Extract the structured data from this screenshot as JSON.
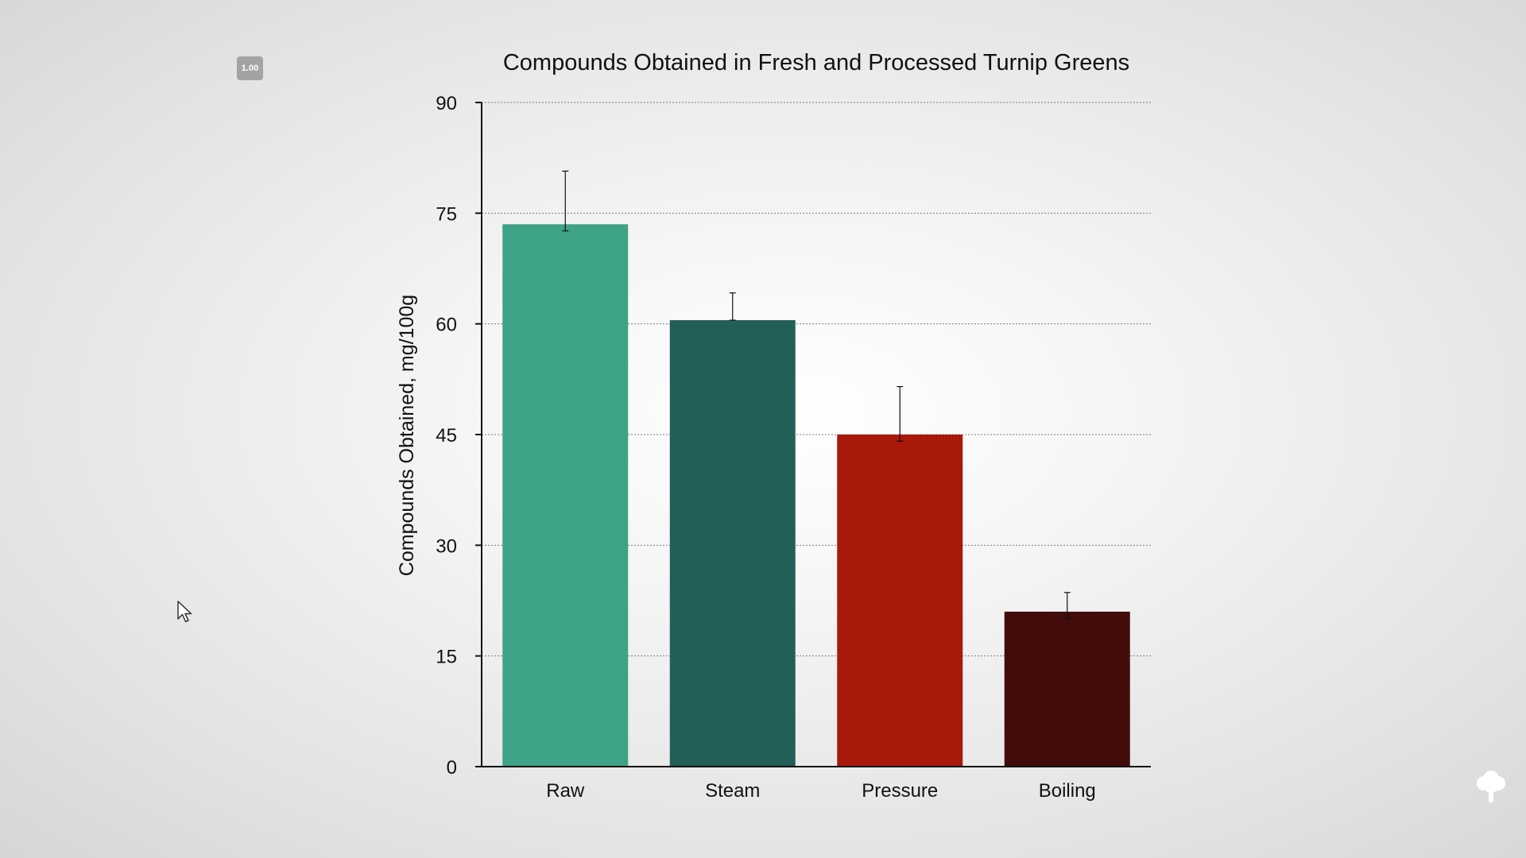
{
  "zoom_badge": "1.00",
  "chart_data": {
    "type": "bar",
    "title": "Compounds Obtained in Fresh and Processed Turnip Greens",
    "xlabel": "",
    "ylabel": "Compounds Obtained, mg/100g",
    "categories": [
      "Raw",
      "Steam",
      "Pressure",
      "Boiling"
    ],
    "values": [
      73.5,
      60.5,
      45,
      21
    ],
    "error_upper": [
      7.2,
      3.7,
      6.5,
      2.6
    ],
    "error_lower": [
      0.9,
      0.0,
      0.9,
      1.0
    ],
    "colors": [
      "#3ea386",
      "#215f58",
      "#a8190c",
      "#420c0b"
    ],
    "ylim": [
      0,
      90
    ],
    "yticks": [
      0,
      15,
      30,
      45,
      60,
      75,
      90
    ],
    "grid": true,
    "legend": "none"
  },
  "icons": {
    "cursor": "mouse-pointer-icon",
    "corner": "tree-icon"
  }
}
